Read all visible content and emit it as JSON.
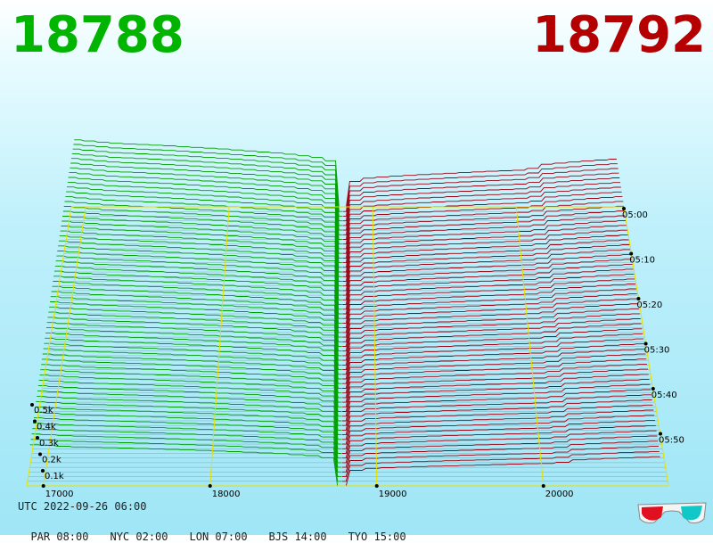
{
  "header": {
    "bid_price": "18788",
    "ask_price": "18792",
    "bid_color": "#00b400",
    "ask_color": "#b40000"
  },
  "footer": {
    "utc_label": "UTC 2022-09-26 06:00",
    "timezones": [
      "PAR 08:00",
      "NYC 02:00",
      "LON 07:00",
      "BJS 14:00",
      "TYO 15:00"
    ]
  },
  "icons": {
    "glasses": "3d-glasses-icon"
  },
  "chart_data": {
    "type": "area",
    "title": "",
    "description_axes": "3D market depth: price (x) vs cumulative volume (z) over time (y)",
    "price_axis": {
      "ticks": [
        "17000",
        "18000",
        "19000",
        "20000"
      ],
      "range": [
        16900,
        20750
      ]
    },
    "volume_axis": {
      "ticks": [
        "0.1k",
        "0.2k",
        "0.3k",
        "0.4k",
        "0.5k"
      ],
      "range": [
        0,
        1000
      ]
    },
    "time_axis": {
      "ticks": [
        "05:00",
        "05:10",
        "05:20",
        "05:30",
        "05:40",
        "05:50"
      ]
    },
    "mid_price": 18790,
    "series": [
      {
        "name": "bid",
        "side": "bid",
        "color": "#00a000",
        "profile": [
          [
            18788,
            0
          ],
          [
            18770,
            280
          ],
          [
            18740,
            420
          ],
          [
            18700,
            520
          ],
          [
            18600,
            560
          ],
          [
            18400,
            600
          ],
          [
            18000,
            650
          ],
          [
            17600,
            690
          ],
          [
            17200,
            720
          ],
          [
            16920,
            760
          ]
        ]
      },
      {
        "name": "ask",
        "side": "ask",
        "color": "#a00010",
        "profile": [
          [
            18792,
            0
          ],
          [
            18810,
            160
          ],
          [
            18850,
            250
          ],
          [
            18900,
            300
          ],
          [
            19000,
            330
          ],
          [
            19300,
            360
          ],
          [
            19800,
            400
          ],
          [
            20100,
            420
          ],
          [
            20200,
            480
          ],
          [
            20500,
            520
          ],
          [
            20700,
            540
          ]
        ]
      }
    ]
  }
}
